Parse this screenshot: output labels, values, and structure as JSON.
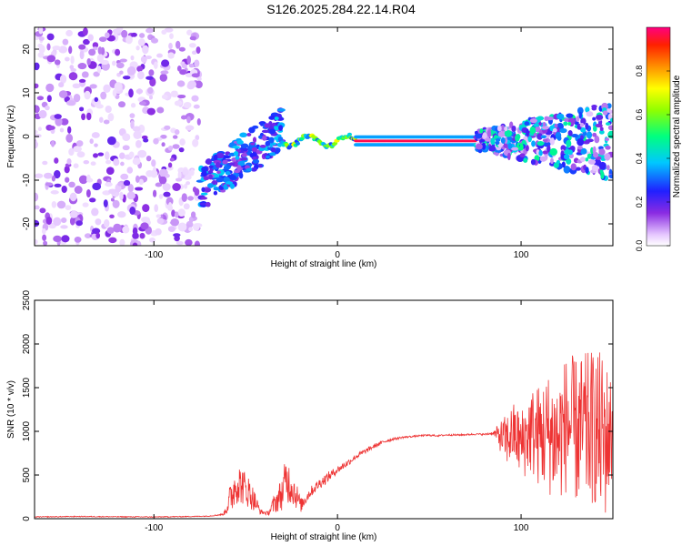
{
  "title": "S126.2025.284.22.14.R04",
  "chart_data": [
    {
      "type": "heatmap",
      "xlabel": "Height of straight line (km)",
      "ylabel": "Frequency (Hz)",
      "xlim": [
        -165,
        150
      ],
      "ylim": [
        -25,
        25
      ],
      "x_ticks": [
        -100,
        0,
        100
      ],
      "y_ticks": [
        -20,
        -10,
        0,
        10,
        20
      ],
      "colorbar": {
        "label": "Normalized spectral amplitude",
        "range": [
          0,
          1
        ],
        "ticks": [
          "0.0",
          "0.2",
          "0.4",
          "0.6",
          "0.8"
        ]
      },
      "features": {
        "noise_region_x": [
          -165,
          -75
        ],
        "transition_region_x": [
          -75,
          -30
        ],
        "strong_line_x": [
          10,
          75
        ],
        "strong_line_freq": -1,
        "strong_line_amplitude": 0.97,
        "right_noise_region_x": [
          75,
          150
        ]
      }
    },
    {
      "type": "line",
      "xlabel": "Height of straight line (km)",
      "ylabel": "SNR (10 * v/v)",
      "xlim": [
        -165,
        150
      ],
      "ylim": [
        0,
        2500
      ],
      "x_ticks": [
        -100,
        0,
        100
      ],
      "y_ticks": [
        0,
        500,
        1000,
        1500,
        2000,
        2500
      ],
      "series": [
        {
          "name": "SNR",
          "color": "#ee3333",
          "x": [
            -165,
            -140,
            -120,
            -100,
            -80,
            -70,
            -62,
            -58,
            -55,
            -52,
            -48,
            -45,
            -42,
            -38,
            -35,
            -30,
            -28,
            -25,
            -22,
            -20,
            -15,
            -10,
            -5,
            0,
            5,
            10,
            15,
            20,
            25,
            30,
            35,
            40,
            45,
            50,
            55,
            60,
            65,
            70,
            75,
            80,
            85,
            88,
            92,
            96,
            100,
            105,
            110,
            115,
            120,
            125,
            130,
            135,
            140,
            145,
            150
          ],
          "y": [
            20,
            25,
            22,
            20,
            25,
            30,
            50,
            250,
            420,
            380,
            300,
            200,
            80,
            60,
            150,
            300,
            450,
            380,
            250,
            150,
            300,
            400,
            480,
            560,
            630,
            710,
            770,
            830,
            880,
            910,
            930,
            940,
            950,
            955,
            950,
            960,
            958,
            962,
            968,
            965,
            980,
            950,
            900,
            980,
            850,
            1000,
            950,
            980,
            900,
            1100,
            1000,
            1000,
            1050,
            900,
            1000
          ],
          "y_spread": [
            5,
            5,
            5,
            5,
            5,
            5,
            10,
            200,
            250,
            220,
            180,
            120,
            30,
            20,
            100,
            200,
            280,
            220,
            150,
            80,
            60,
            60,
            60,
            40,
            40,
            30,
            30,
            25,
            20,
            15,
            12,
            10,
            10,
            10,
            10,
            10,
            10,
            10,
            10,
            10,
            20,
            150,
            300,
            350,
            400,
            500,
            600,
            700,
            750,
            800,
            850,
            900,
            900,
            1000,
            600
          ]
        }
      ]
    }
  ]
}
